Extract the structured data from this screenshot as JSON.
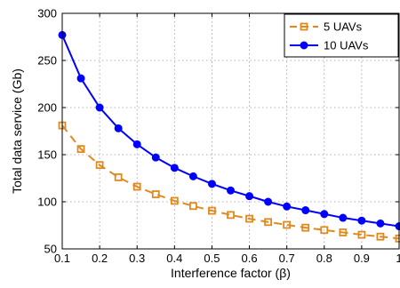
{
  "chart_data": {
    "type": "line",
    "title": "",
    "xlabel": "Interference factor (β)",
    "ylabel": "Total data service (Gb)",
    "xlim": [
      0.1,
      1.0
    ],
    "ylim": [
      50,
      300
    ],
    "xticks": [
      0.1,
      0.2,
      0.3,
      0.4,
      0.5,
      0.6,
      0.7,
      0.8,
      0.9,
      1
    ],
    "xtick_labels": [
      "0.1",
      "0.2",
      "0.3",
      "0.4",
      "0.5",
      "0.6",
      "0.7",
      "0.8",
      "0.9",
      "1"
    ],
    "yticks": [
      50,
      100,
      150,
      200,
      250,
      300
    ],
    "ytick_labels": [
      "50",
      "100",
      "150",
      "200",
      "250",
      "300"
    ],
    "grid": true,
    "legend_position": "top-right",
    "x": [
      0.1,
      0.15,
      0.2,
      0.25,
      0.3,
      0.35,
      0.4,
      0.45,
      0.5,
      0.55,
      0.6,
      0.65,
      0.7,
      0.75,
      0.8,
      0.85,
      0.9,
      0.95,
      1.0
    ],
    "series": [
      {
        "name": "5 UAVs",
        "color": "#E08A1E",
        "line": "dashed",
        "marker": "square-open",
        "values": [
          181,
          156,
          139,
          126,
          116,
          108,
          101,
          95.5,
          90.5,
          86,
          82,
          78.5,
          75.5,
          72.5,
          70,
          67.5,
          65,
          63,
          61
        ]
      },
      {
        "name": "10 UAVs",
        "color": "#0000FF",
        "line": "solid",
        "marker": "circle-filled",
        "values": [
          277,
          231,
          200,
          178,
          161,
          147,
          136,
          127,
          119,
          112,
          106,
          100,
          95,
          91,
          87,
          83,
          80,
          77,
          74
        ]
      }
    ]
  }
}
